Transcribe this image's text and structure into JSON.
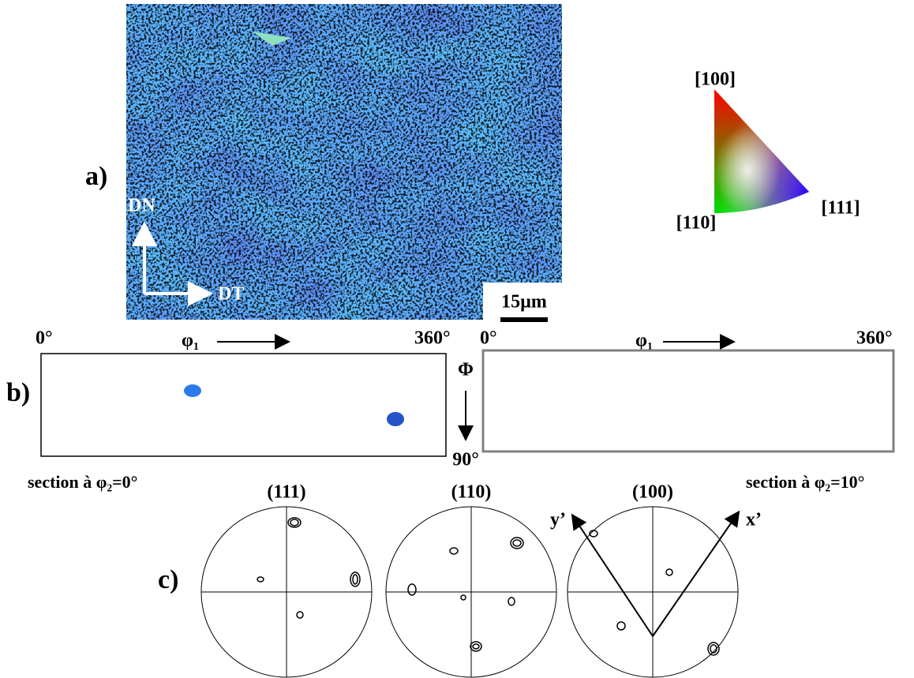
{
  "panel_a": {
    "label": "a)",
    "map_axes": {
      "vertical": "DN",
      "horizontal": "DT"
    },
    "scale_bar": "15µm",
    "ipf_key": {
      "top": "[100]",
      "bottom_left": "[110]",
      "right": "[111]"
    }
  },
  "panel_b": {
    "label": "b)",
    "left_section": {
      "x_start": "0°",
      "x_end": "360°",
      "x_axis": "φ₁",
      "y_axis": "Φ",
      "y_end": "90°",
      "caption": "section à φ₂=0°"
    },
    "right_section": {
      "x_start": "0°",
      "x_end": "360°",
      "x_axis": "φ₁",
      "caption": "section à φ₂=10°"
    }
  },
  "panel_c": {
    "label": "c)",
    "pole_figures": [
      "(111)",
      "(110)",
      "(100)"
    ],
    "axes": {
      "left": "y’",
      "right": "x’"
    }
  }
}
